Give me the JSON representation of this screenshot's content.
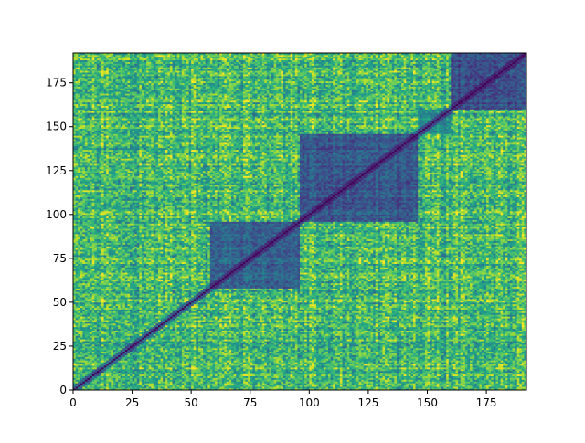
{
  "chart_data": {
    "type": "heatmap",
    "title": "",
    "xlabel": "",
    "ylabel": "",
    "xlim": [
      0,
      192
    ],
    "ylim": [
      0,
      192
    ],
    "x_ticks": [
      0,
      25,
      50,
      75,
      100,
      125,
      150,
      175
    ],
    "y_ticks": [
      0,
      25,
      50,
      75,
      100,
      125,
      150,
      175
    ],
    "x_tick_labels": [
      "0",
      "25",
      "50",
      "75",
      "100",
      "125",
      "150",
      "175"
    ],
    "y_tick_labels": [
      "0",
      "25",
      "50",
      "75",
      "100",
      "125",
      "150",
      "175"
    ],
    "grid": false,
    "colormap": "viridis",
    "value_range": [
      0,
      1
    ],
    "diagonal_value": 0,
    "n_rows": 192,
    "n_cols": 192,
    "block_clusters": [
      {
        "range": [
          58,
          96
        ],
        "value": 0.12
      },
      {
        "range": [
          96,
          146
        ],
        "value": 0.1
      },
      {
        "range": [
          146,
          160
        ],
        "value": 0.3
      },
      {
        "range": [
          160,
          192
        ],
        "value": 0.06
      },
      {
        "range": [
          0,
          58
        ],
        "value": 0.55
      }
    ]
  },
  "colors": {
    "axis": "#000000",
    "background": "#ffffff",
    "viridis_stops": [
      "#440154",
      "#482878",
      "#3e4989",
      "#31688e",
      "#26828e",
      "#1f9e89",
      "#35b779",
      "#6ece58",
      "#b5de2b",
      "#fde725"
    ]
  }
}
